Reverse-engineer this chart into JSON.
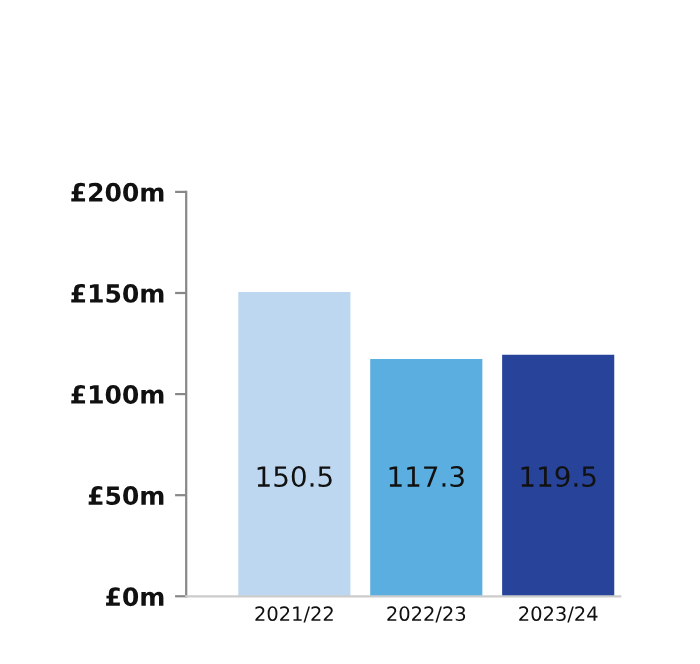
{
  "chart_data": {
    "type": "bar",
    "categories": [
      "2021/22",
      "2022/23",
      "2023/24"
    ],
    "values": [
      150.5,
      117.3,
      119.5
    ],
    "colors": [
      "#bcd7ef",
      "#5aaee0",
      "#27449a"
    ],
    "ylim": [
      0,
      200
    ],
    "yticks": [
      {
        "value": 0,
        "label": "£0m"
      },
      {
        "value": 50,
        "label": "£50m"
      },
      {
        "value": 100,
        "label": "£100m"
      },
      {
        "value": 150,
        "label": "£150m"
      },
      {
        "value": 200,
        "label": "£200m"
      }
    ],
    "data_labels": true,
    "grid": false,
    "legend": false
  }
}
